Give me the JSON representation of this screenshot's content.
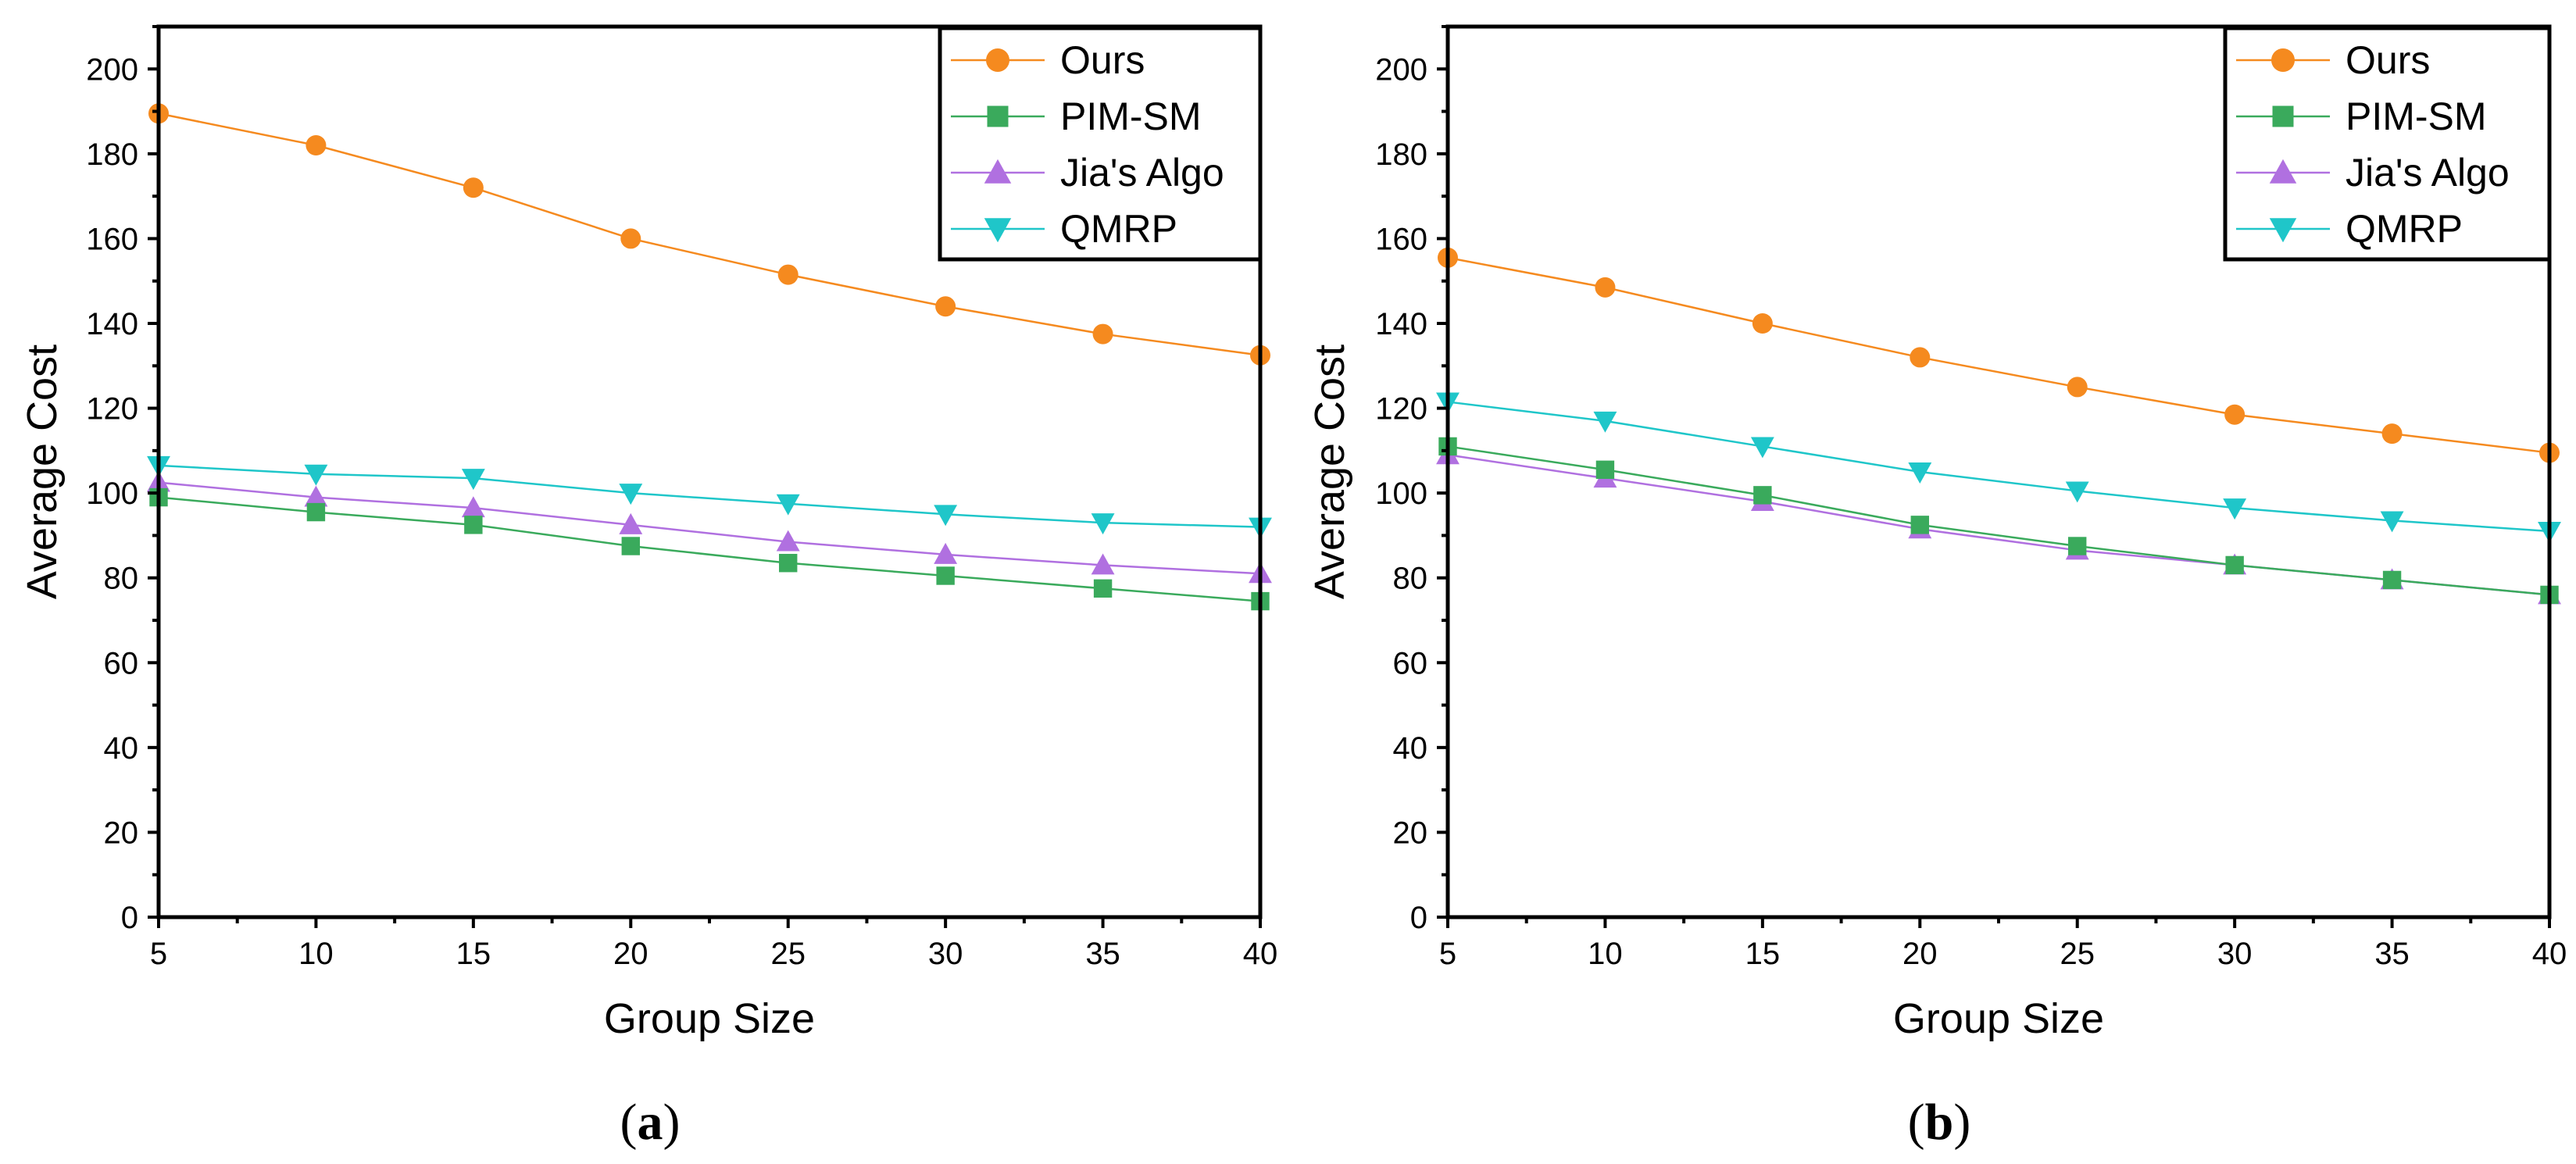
{
  "chart_data": [
    {
      "type": "line",
      "caption": {
        "open": "(",
        "letter": "a",
        "close": ")"
      },
      "xlabel": "Group Size",
      "ylabel": "Average Cost",
      "xlim": [
        5,
        40
      ],
      "ylim": [
        0,
        210
      ],
      "xticks": [
        "5",
        "10",
        "15",
        "20",
        "25",
        "30",
        "35",
        "40"
      ],
      "yticks": [
        "0",
        "20",
        "40",
        "60",
        "80",
        "100",
        "120",
        "140",
        "160",
        "180",
        "200"
      ],
      "grid": false,
      "legend_position": "top-right",
      "x": [
        5,
        10,
        15,
        20,
        25,
        30,
        35,
        40
      ],
      "series": [
        {
          "name": "Ours",
          "color": "#f58a1f",
          "marker": "circle",
          "values": [
            189.5,
            182,
            172,
            160,
            151.5,
            144,
            137.5,
            132.5
          ]
        },
        {
          "name": "PIM-SM",
          "color": "#3aaa5c",
          "marker": "square",
          "values": [
            99,
            95.5,
            92.5,
            87.5,
            83.5,
            80.5,
            77.5,
            74.5
          ]
        },
        {
          "name": "Jia's Algo",
          "color": "#b070e0",
          "marker": "triangle-up",
          "values": [
            102.5,
            99,
            96.5,
            92.5,
            88.5,
            85.5,
            83,
            81
          ]
        },
        {
          "name": "QMRP",
          "color": "#1fc6c9",
          "marker": "triangle-down",
          "values": [
            106.5,
            104.5,
            103.5,
            100,
            97.5,
            95,
            93,
            92
          ]
        }
      ]
    },
    {
      "type": "line",
      "caption": {
        "open": "(",
        "letter": "b",
        "close": ")"
      },
      "xlabel": "Group Size",
      "ylabel": "Average Cost",
      "xlim": [
        5,
        40
      ],
      "ylim": [
        0,
        210
      ],
      "xticks": [
        "5",
        "10",
        "15",
        "20",
        "25",
        "30",
        "35",
        "40"
      ],
      "yticks": [
        "0",
        "20",
        "40",
        "60",
        "80",
        "100",
        "120",
        "140",
        "160",
        "180",
        "200"
      ],
      "grid": false,
      "legend_position": "top-right",
      "x": [
        5,
        10,
        15,
        20,
        25,
        30,
        35,
        40
      ],
      "series": [
        {
          "name": "Ours",
          "color": "#f58a1f",
          "marker": "circle",
          "values": [
            155.5,
            148.5,
            140,
            132,
            125,
            118.5,
            114,
            109.5
          ]
        },
        {
          "name": "PIM-SM",
          "color": "#3aaa5c",
          "marker": "square",
          "values": [
            111,
            105.5,
            99.5,
            92.5,
            87.5,
            83,
            79.5,
            76
          ]
        },
        {
          "name": "Jia's Algo",
          "color": "#b070e0",
          "marker": "triangle-up",
          "values": [
            109,
            103.5,
            98,
            91.5,
            86.5,
            83,
            79.5,
            76
          ]
        },
        {
          "name": "QMRP",
          "color": "#1fc6c9",
          "marker": "triangle-down",
          "values": [
            121.5,
            117,
            111,
            105,
            100.5,
            96.5,
            93.5,
            91
          ]
        }
      ]
    }
  ]
}
